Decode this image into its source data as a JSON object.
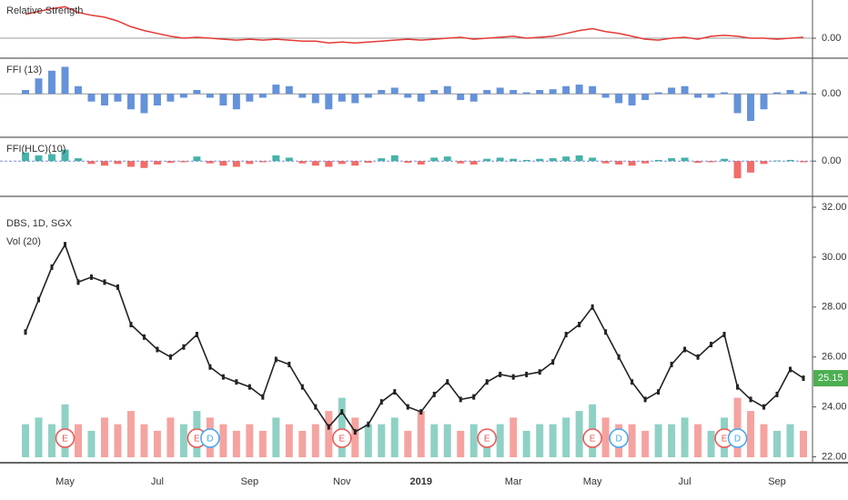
{
  "chart_data": [
    {
      "type": "line",
      "title": "Relative Strength",
      "color": "#e53935",
      "ylim": [
        -0.2,
        0.4
      ],
      "yticks": [
        {
          "value": 0,
          "label": "0.00"
        }
      ],
      "values": [
        0.25,
        0.28,
        0.31,
        0.33,
        0.27,
        0.24,
        0.22,
        0.18,
        0.12,
        0.08,
        0.05,
        0.02,
        0.0,
        0.01,
        0.0,
        -0.01,
        -0.02,
        -0.01,
        -0.02,
        -0.01,
        -0.02,
        -0.03,
        -0.03,
        -0.05,
        -0.04,
        -0.05,
        -0.04,
        -0.03,
        -0.02,
        -0.01,
        -0.02,
        -0.01,
        0.0,
        0.01,
        -0.01,
        0.0,
        0.01,
        0.02,
        0.0,
        0.01,
        0.02,
        0.05,
        0.08,
        0.1,
        0.07,
        0.05,
        0.02,
        -0.01,
        -0.02,
        0.0,
        0.01,
        -0.01,
        0.02,
        0.03,
        0.02,
        0.0,
        0.0,
        -0.01,
        0.0,
        0.01
      ]
    },
    {
      "type": "bar",
      "title": "FFI (13)",
      "color": "#4a7fd4",
      "ylim": [
        -0.55,
        0.45
      ],
      "yticks": [
        {
          "value": 0,
          "label": "0.00"
        }
      ],
      "values": [
        0.05,
        0.2,
        0.3,
        0.35,
        0.1,
        -0.1,
        -0.15,
        -0.1,
        -0.2,
        -0.25,
        -0.15,
        -0.1,
        -0.05,
        0.05,
        -0.05,
        -0.15,
        -0.2,
        -0.1,
        -0.05,
        0.12,
        0.1,
        -0.05,
        -0.12,
        -0.2,
        -0.1,
        -0.12,
        -0.05,
        0.05,
        0.08,
        -0.05,
        -0.1,
        0.05,
        0.1,
        -0.08,
        -0.1,
        0.05,
        0.08,
        0.05,
        0.02,
        0.05,
        0.06,
        0.1,
        0.12,
        0.1,
        -0.05,
        -0.12,
        -0.15,
        -0.08,
        0.02,
        0.08,
        0.1,
        -0.05,
        -0.05,
        0.02,
        -0.25,
        -0.35,
        -0.2,
        0.02,
        0.05,
        0.03
      ]
    },
    {
      "type": "bar",
      "title": "FFI(HLC)(10)",
      "color": "#26a69a",
      "negative_color": "#ef5350",
      "ylim": [
        -0.6,
        0.4
      ],
      "yticks": [
        {
          "value": 0,
          "label": "0.00"
        }
      ],
      "values": [
        0.15,
        0.1,
        0.12,
        0.2,
        0.05,
        -0.05,
        -0.08,
        -0.05,
        -0.1,
        -0.12,
        -0.06,
        -0.03,
        -0.02,
        0.08,
        -0.04,
        -0.08,
        -0.1,
        -0.05,
        -0.02,
        0.1,
        0.06,
        -0.04,
        -0.08,
        -0.1,
        -0.05,
        -0.08,
        -0.03,
        0.05,
        0.1,
        -0.03,
        -0.06,
        0.06,
        0.08,
        -0.04,
        -0.06,
        0.04,
        0.06,
        0.04,
        0.02,
        0.04,
        0.05,
        0.08,
        0.1,
        0.06,
        -0.04,
        -0.06,
        -0.08,
        -0.04,
        0.02,
        0.05,
        0.06,
        -0.03,
        -0.02,
        0.04,
        -0.3,
        -0.2,
        -0.05,
        0.01,
        0.02,
        -0.02
      ]
    },
    {
      "type": "price",
      "title": "DBS, 1D, SGX",
      "volume_title": "Vol (20)",
      "color": "#222222",
      "up_color": "#8fd1c5",
      "down_color": "#f5a3a0",
      "last_color": "#4caf50",
      "ylim": [
        21.8,
        32.4
      ],
      "vol_ylim": [
        0,
        40
      ],
      "yticks": [
        {
          "value": 22,
          "label": "22.00"
        },
        {
          "value": 24,
          "label": "24.00"
        },
        {
          "value": 26,
          "label": "26.00"
        },
        {
          "value": 28,
          "label": "28.00"
        },
        {
          "value": 30,
          "label": "30.00"
        },
        {
          "value": 32,
          "label": "32.00"
        }
      ],
      "categories": [
        null,
        null,
        null,
        "May",
        null,
        null,
        null,
        null,
        null,
        null,
        "Jul",
        null,
        null,
        null,
        null,
        null,
        null,
        "Sep",
        null,
        null,
        null,
        null,
        null,
        null,
        "Nov",
        null,
        null,
        null,
        null,
        null,
        "2019",
        null,
        null,
        null,
        null,
        null,
        null,
        "Mar",
        null,
        null,
        null,
        null,
        null,
        "May",
        null,
        null,
        null,
        null,
        null,
        null,
        "Jul",
        null,
        null,
        null,
        null,
        null,
        null,
        "Sep",
        null,
        null
      ],
      "values": [
        27.0,
        28.3,
        29.6,
        30.5,
        29.0,
        29.2,
        29.0,
        28.8,
        27.3,
        26.8,
        26.3,
        26.0,
        26.4,
        26.9,
        25.6,
        25.2,
        25.0,
        24.8,
        24.4,
        25.9,
        25.7,
        24.8,
        24.0,
        23.2,
        23.8,
        23.0,
        23.3,
        24.2,
        24.6,
        24.0,
        23.8,
        24.5,
        25.0,
        24.3,
        24.4,
        25.0,
        25.3,
        25.2,
        25.3,
        25.4,
        25.8,
        26.9,
        27.3,
        28.0,
        27.0,
        26.0,
        25.0,
        24.3,
        24.6,
        25.7,
        26.3,
        26.0,
        26.5,
        26.9,
        24.8,
        24.3,
        24.0,
        24.5,
        25.5,
        25.15
      ],
      "volume": [
        5,
        6,
        5,
        8,
        5,
        4,
        6,
        5,
        7,
        5,
        4,
        6,
        5,
        7,
        6,
        5,
        4,
        5,
        4,
        6,
        5,
        4,
        5,
        7,
        9,
        6,
        5,
        5,
        6,
        4,
        7,
        5,
        5,
        4,
        5,
        4,
        5,
        6,
        4,
        5,
        5,
        6,
        7,
        8,
        6,
        5,
        5,
        4,
        5,
        5,
        6,
        5,
        4,
        6,
        9,
        7,
        5,
        4,
        5,
        4
      ],
      "events": [
        {
          "label": "E",
          "at": 3
        },
        {
          "label": "E",
          "at": 13
        },
        {
          "label": "D",
          "at": 14
        },
        {
          "label": "E",
          "at": 24
        },
        {
          "label": "E",
          "at": 35
        },
        {
          "label": "E",
          "at": 43
        },
        {
          "label": "D",
          "at": 45
        },
        {
          "label": "E",
          "at": 53
        },
        {
          "label": "D",
          "at": 54
        }
      ]
    }
  ]
}
